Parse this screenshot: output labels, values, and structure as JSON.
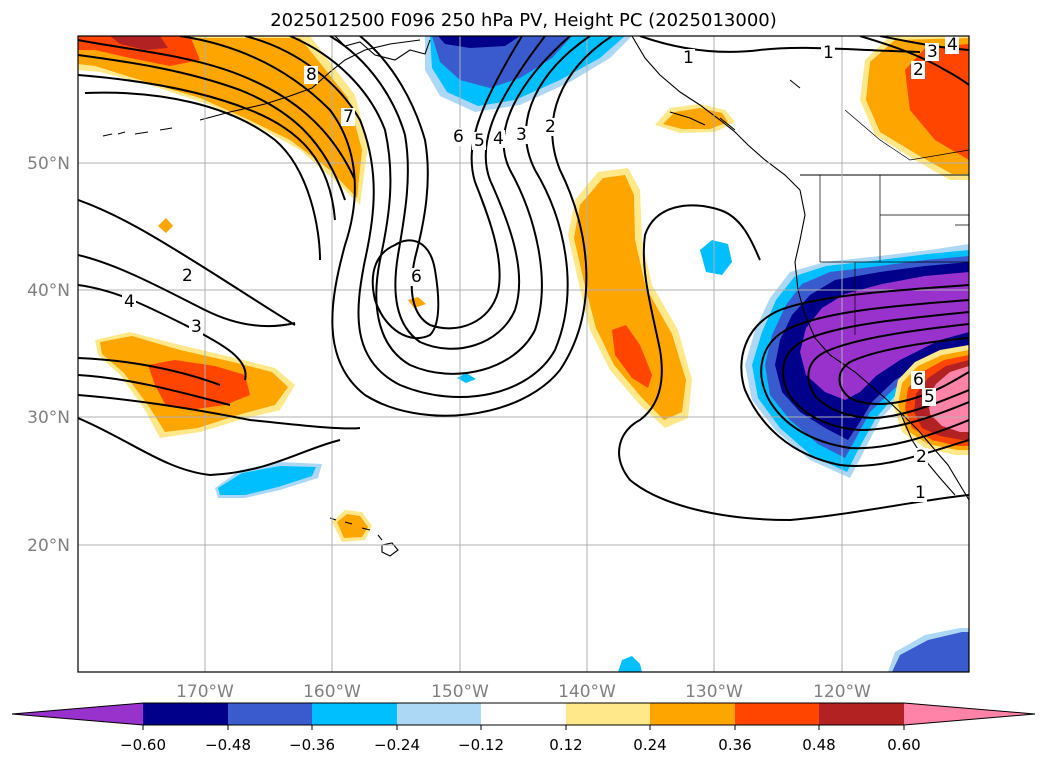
{
  "title": "2025012500 F096 250 hPa PV, Height PC (2025013000)",
  "map": {
    "latitude_labels": [
      "50°N",
      "40°N",
      "30°N",
      "20°N"
    ],
    "longitude_labels": [
      "170°W",
      "160°W",
      "150°W",
      "140°W",
      "130°W",
      "120°W"
    ],
    "gridlines": true,
    "coastlines": true
  },
  "colors": {
    "neg_060": "#9932cc",
    "neg_048": "#00008b",
    "neg_036": "#3a5bcd",
    "neg_024": "#00bfff",
    "neg_012": "#add8f5",
    "neutral": "#ffffff",
    "pos_012": "#ffe88a",
    "pos_024": "#ffa500",
    "pos_036": "#ff4500",
    "pos_048": "#b22222",
    "pos_060": "#ff82a8",
    "grid": "#b0b0b0",
    "contour": "#000000"
  },
  "colorbar": {
    "ticks": [
      "−0.60",
      "−0.48",
      "−0.36",
      "−0.24",
      "−0.12",
      "0.12",
      "0.24",
      "0.36",
      "0.48",
      "0.60"
    ],
    "extend": "both"
  },
  "contour_labels": [
    "8",
    "7",
    "6",
    "5",
    "4",
    "3",
    "2",
    "1",
    "2",
    "4",
    "3",
    "6",
    "1",
    "2",
    "3",
    "4",
    "2",
    "1",
    "6",
    "5"
  ]
}
